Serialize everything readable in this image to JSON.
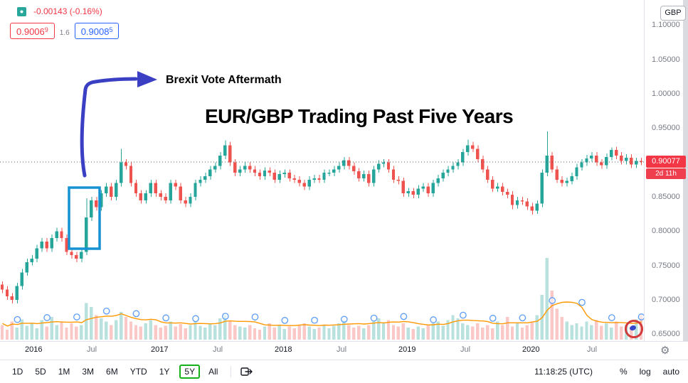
{
  "colors": {
    "up": "#26a69a",
    "down": "#ef5350",
    "last_price_badge": "#f23645",
    "countdown_badge": "#ef3e4e",
    "bid_red": "#f23645",
    "ask_blue": "#2962ff",
    "annotation_blue": "#3a3fc4",
    "annotation_cyan": "#1592d2",
    "annotation_green": "#15b01a",
    "volume_ma_orange": "#ff9800",
    "marker_blue": "#5b9cf6"
  },
  "legend": {
    "change": "-0.00143 (-0.16%)",
    "bid_main": "0.9006",
    "bid_sup": "9",
    "spread": "1.6",
    "ask_main": "0.9008",
    "ask_sup": "5"
  },
  "annotations": {
    "brexit_label": "Brexit Vote Aftermath",
    "title": "EUR/GBP Trading Past Five Years"
  },
  "price_axis": {
    "currency_button": "GBP",
    "ticks": [
      "1.10000",
      "1.05000",
      "1.00000",
      "0.95000",
      "0.90000",
      "0.85000",
      "0.80000",
      "0.75000",
      "0.70000",
      "0.65000"
    ],
    "last_price": "0.90077",
    "countdown": "2d 11h"
  },
  "toolbar": {
    "ranges": [
      "1D",
      "5D",
      "1M",
      "3M",
      "6M",
      "YTD",
      "1Y",
      "5Y",
      "All"
    ],
    "highlighted_range": "5Y",
    "clock": "11:18:25 (UTC)",
    "percent": "%",
    "log": "log",
    "auto": "auto"
  },
  "chart_data": {
    "type": "candlestick",
    "symbol": "EUR/GBP",
    "timeframe": "5Y",
    "title": "EUR/GBP Trading Past Five Years",
    "ylim": [
      0.64,
      1.1365
    ],
    "y_ticks": [
      1.1,
      1.05,
      1.0,
      0.95,
      0.9,
      0.85,
      0.8,
      0.75,
      0.7,
      0.65
    ],
    "x_labels": [
      {
        "label": "2016",
        "bar": 5,
        "major": true
      },
      {
        "label": "Jul",
        "bar": 17.5
      },
      {
        "label": "2017",
        "bar": 30.5,
        "major": true
      },
      {
        "label": "Jul",
        "bar": 43
      },
      {
        "label": "2018",
        "bar": 55.5,
        "major": true
      },
      {
        "label": "Jul",
        "bar": 68
      },
      {
        "label": "2019",
        "bar": 80.5,
        "major": true
      },
      {
        "label": "Jul",
        "bar": 93
      },
      {
        "label": "2020",
        "bar": 105.5,
        "major": true
      },
      {
        "label": "Jul",
        "bar": 118.5
      }
    ],
    "first_open": 0.722,
    "wick": 0.005,
    "closes": [
      0.715,
      0.705,
      0.7,
      0.72,
      0.74,
      0.755,
      0.76,
      0.775,
      0.785,
      0.775,
      0.79,
      0.8,
      0.79,
      0.77,
      0.765,
      0.76,
      0.77,
      0.82,
      0.845,
      0.835,
      0.855,
      0.865,
      0.85,
      0.87,
      0.9,
      0.895,
      0.87,
      0.855,
      0.845,
      0.855,
      0.87,
      0.855,
      0.85,
      0.845,
      0.87,
      0.865,
      0.845,
      0.84,
      0.85,
      0.87,
      0.875,
      0.88,
      0.89,
      0.895,
      0.91,
      0.925,
      0.9,
      0.885,
      0.89,
      0.895,
      0.89,
      0.885,
      0.88,
      0.888,
      0.885,
      0.875,
      0.883,
      0.885,
      0.877,
      0.875,
      0.87,
      0.865,
      0.875,
      0.877,
      0.875,
      0.885,
      0.885,
      0.89,
      0.895,
      0.903,
      0.895,
      0.887,
      0.877,
      0.883,
      0.87,
      0.89,
      0.898,
      0.9,
      0.89,
      0.875,
      0.873,
      0.855,
      0.858,
      0.853,
      0.862,
      0.865,
      0.855,
      0.87,
      0.877,
      0.885,
      0.89,
      0.895,
      0.9,
      0.915,
      0.925,
      0.92,
      0.905,
      0.89,
      0.875,
      0.862,
      0.865,
      0.857,
      0.853,
      0.838,
      0.845,
      0.843,
      0.836,
      0.83,
      0.84,
      0.885,
      0.91,
      0.89,
      0.875,
      0.87,
      0.873,
      0.88,
      0.893,
      0.9,
      0.906,
      0.91,
      0.9,
      0.896,
      0.908,
      0.918,
      0.91,
      0.902,
      0.907,
      0.897,
      0.902,
      0.90077
    ],
    "high_overrides": {
      "17": 0.848,
      "24": 0.92,
      "45": 0.932,
      "94": 0.933,
      "110": 0.945,
      "123": 0.922
    },
    "low_overrides": {
      "2": 0.695,
      "103": 0.832,
      "107": 0.824
    },
    "volumes": [
      0.18,
      0.12,
      0.22,
      0.15,
      0.25,
      0.17,
      0.2,
      0.14,
      0.24,
      0.16,
      0.28,
      0.18,
      0.22,
      0.15,
      0.2,
      0.16,
      0.18,
      0.45,
      0.4,
      0.3,
      0.26,
      0.22,
      0.18,
      0.24,
      0.34,
      0.28,
      0.22,
      0.18,
      0.16,
      0.2,
      0.24,
      0.18,
      0.15,
      0.17,
      0.22,
      0.16,
      0.19,
      0.14,
      0.18,
      0.22,
      0.17,
      0.15,
      0.2,
      0.18,
      0.26,
      0.3,
      0.22,
      0.18,
      0.16,
      0.15,
      0.18,
      0.14,
      0.12,
      0.16,
      0.2,
      0.15,
      0.18,
      0.13,
      0.16,
      0.14,
      0.17,
      0.2,
      0.16,
      0.13,
      0.15,
      0.18,
      0.14,
      0.17,
      0.2,
      0.24,
      0.18,
      0.15,
      0.17,
      0.14,
      0.18,
      0.22,
      0.26,
      0.2,
      0.24,
      0.18,
      0.16,
      0.2,
      0.15,
      0.13,
      0.16,
      0.14,
      0.18,
      0.2,
      0.22,
      0.17,
      0.24,
      0.3,
      0.26,
      0.2,
      0.18,
      0.16,
      0.2,
      0.15,
      0.18,
      0.14,
      0.22,
      0.18,
      0.28,
      0.16,
      0.2,
      0.15,
      0.18,
      0.22,
      0.3,
      0.55,
      1.0,
      0.6,
      0.38,
      0.28,
      0.22,
      0.18,
      0.2,
      0.16,
      0.22,
      0.18,
      0.24,
      0.17,
      0.2,
      0.15,
      0.22,
      0.16,
      0.18,
      0.14,
      0.25,
      0.3
    ],
    "last_price": 0.90077,
    "volume_ma_window": 8,
    "marker_interval": 6
  }
}
